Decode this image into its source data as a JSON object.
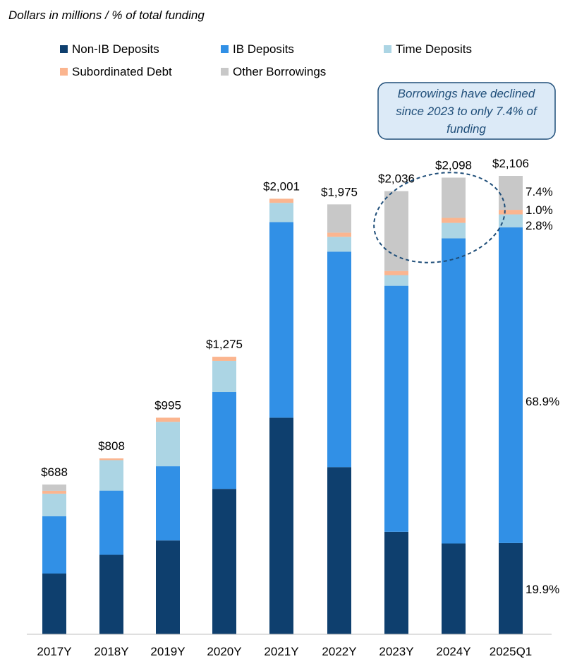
{
  "chart_data": {
    "type": "bar",
    "stacked": true,
    "title": "Dollars in millions / % of total funding",
    "xlabel": "",
    "ylabel": "",
    "ylim": [
      0,
      2150
    ],
    "grid": false,
    "legend_position": "top",
    "categories": [
      "2017Y",
      "2018Y",
      "2019Y",
      "2020Y",
      "2021Y",
      "2022Y",
      "2023Y",
      "2024Y",
      "2025Q1"
    ],
    "totals": [
      688,
      808,
      995,
      1275,
      2001,
      1975,
      2036,
      2098,
      2106
    ],
    "total_labels": [
      "$688",
      "$808",
      "$995",
      "$1,275",
      "$2,001",
      "$1,975",
      "$2,036",
      "$2,098",
      "$2,106"
    ],
    "series": [
      {
        "name": "Non-IB Deposits",
        "color": "#0e3f6e",
        "values": [
          279,
          365,
          431,
          668,
          995,
          768,
          471,
          417,
          419
        ]
      },
      {
        "name": "IB Deposits",
        "color": "#3190e6",
        "values": [
          263,
          295,
          341,
          445,
          899,
          990,
          1130,
          1402,
          1451
        ]
      },
      {
        "name": "Time Deposits",
        "color": "#acd5e4",
        "values": [
          104,
          140,
          204,
          143,
          88,
          68,
          49,
          71,
          59
        ]
      },
      {
        "name": "Subordinated Debt",
        "color": "#fbb58f",
        "values": [
          13,
          8,
          19,
          19,
          19,
          19,
          19,
          23,
          21
        ]
      },
      {
        "name": "Other Borrowings",
        "color": "#c8c8c8",
        "values": [
          29,
          0,
          0,
          0,
          0,
          130,
          367,
          185,
          156
        ]
      }
    ],
    "pct_labels_2025Q1": [
      {
        "series": "Other Borrowings",
        "label": "7.4%"
      },
      {
        "series": "Subordinated Debt",
        "label": "1.0%"
      },
      {
        "series": "Time Deposits",
        "label": "2.8%"
      },
      {
        "series": "IB Deposits",
        "label": "68.9%"
      },
      {
        "series": "Non-IB Deposits",
        "label": "19.9%"
      }
    ],
    "annotation": {
      "lines": [
        "Borrowings have declined",
        "since 2023 to only 7.4% of",
        "funding"
      ],
      "fill": "#dceaf7",
      "border": "#1f4e79"
    }
  }
}
